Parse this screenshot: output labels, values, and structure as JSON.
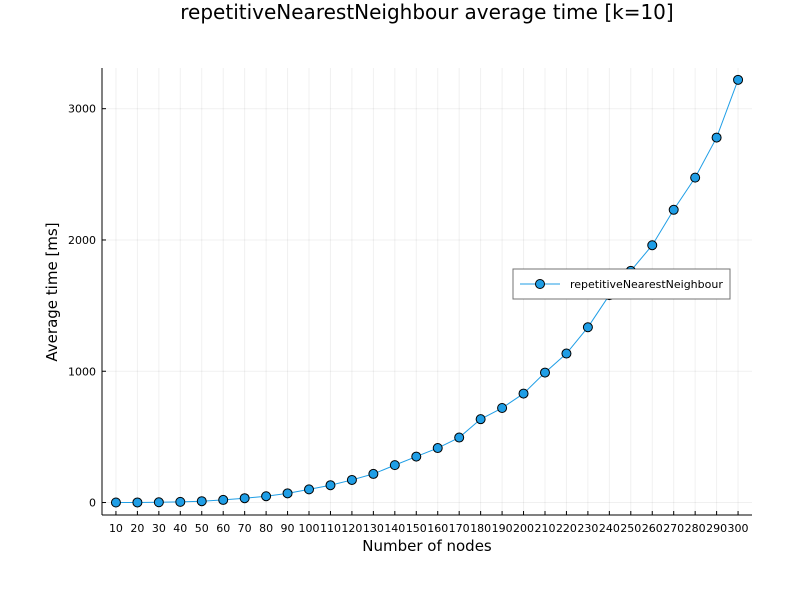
{
  "chart_data": {
    "type": "line",
    "title": "repetitiveNearestNeighbour average time [k=10]",
    "xlabel": "Number of nodes",
    "ylabel": "Average time [ms]",
    "x": [
      10,
      20,
      30,
      40,
      50,
      60,
      70,
      80,
      90,
      100,
      110,
      120,
      130,
      140,
      150,
      160,
      170,
      180,
      190,
      200,
      210,
      220,
      230,
      240,
      250,
      260,
      270,
      280,
      290,
      300
    ],
    "series": [
      {
        "name": "repetitiveNearestNeighbour",
        "values": [
          0.1,
          0.6,
          2,
          5,
          10,
          20,
          33,
          48,
          70,
          100,
          132,
          172,
          218,
          285,
          350,
          415,
          495,
          635,
          720,
          830,
          990,
          1135,
          1335,
          1580,
          1765,
          1960,
          2230,
          2475,
          2780,
          3220
        ],
        "color": "#1f9ee6"
      }
    ],
    "xticks": [
      "10",
      "20",
      "30",
      "40",
      "50",
      "60",
      "70",
      "80",
      "90",
      "100",
      "110",
      "120",
      "130",
      "140",
      "150",
      "160",
      "170",
      "180",
      "190",
      "200",
      "210",
      "220",
      "230",
      "240",
      "250",
      "260",
      "270",
      "280",
      "290",
      "300"
    ],
    "yticks": [
      0,
      1000,
      2000,
      3000
    ],
    "ytick_labels": [
      "0",
      "1000",
      "2000",
      "3000"
    ],
    "xlim": [
      3.5,
      306.5
    ],
    "ylim": [
      -95,
      3310
    ],
    "grid": true,
    "legend_position": "right-center"
  }
}
